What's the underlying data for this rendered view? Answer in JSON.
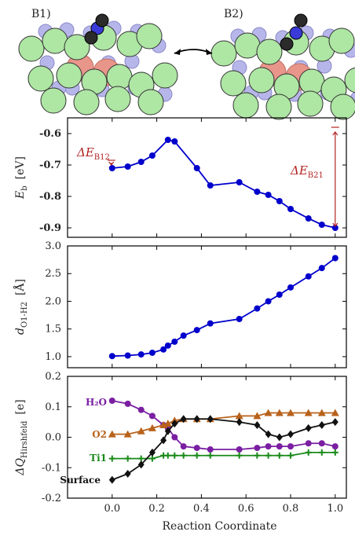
{
  "panel_labels": {
    "left": "B1)",
    "right": "B2)"
  },
  "annotations": {
    "delta_b12": "ΔE",
    "delta_b12_sub": "B12",
    "delta_b21": "ΔE",
    "delta_b21_sub": "B21",
    "color": "#b22222"
  },
  "chart_data": [
    {
      "type": "line",
      "ylabel_main": "E",
      "ylabel_sub": "b",
      "ylabel_unit": "[eV]",
      "xlim": [
        -0.2,
        1.05
      ],
      "ylim": [
        -0.93,
        -0.55
      ],
      "yticks": [
        "-0.6",
        "-0.7",
        "-0.8",
        "-0.9"
      ],
      "ytick_values": [
        -0.6,
        -0.7,
        -0.8,
        -0.9
      ],
      "series": [
        {
          "color": "#0000cc",
          "marker": "circle",
          "x": [
            0,
            0.07,
            0.13,
            0.18,
            0.25,
            0.28,
            0.38,
            0.44,
            0.57,
            0.65,
            0.7,
            0.75,
            0.8,
            0.88,
            0.94,
            1.0
          ],
          "y": [
            -0.71,
            -0.705,
            -0.69,
            -0.67,
            -0.62,
            -0.625,
            -0.71,
            -0.765,
            -0.755,
            -0.785,
            -0.795,
            -0.815,
            -0.84,
            -0.87,
            -0.89,
            -0.9
          ]
        }
      ]
    },
    {
      "type": "line",
      "ylabel_main": "d",
      "ylabel_sub": "O1-H2",
      "ylabel_unit": "[Å]",
      "xlim": [
        -0.2,
        1.05
      ],
      "ylim": [
        0.8,
        3.0
      ],
      "yticks": [
        "1.0",
        "1.5",
        "2.0",
        "2.5",
        "3.0"
      ],
      "ytick_values": [
        1.0,
        1.5,
        2.0,
        2.5,
        3.0
      ],
      "series": [
        {
          "color": "#0000cc",
          "marker": "circle",
          "x": [
            0,
            0.07,
            0.13,
            0.18,
            0.23,
            0.25,
            0.28,
            0.32,
            0.38,
            0.44,
            0.57,
            0.65,
            0.7,
            0.75,
            0.8,
            0.88,
            0.94,
            1.0
          ],
          "y": [
            1.01,
            1.02,
            1.04,
            1.07,
            1.13,
            1.2,
            1.27,
            1.38,
            1.48,
            1.6,
            1.68,
            1.87,
            2.0,
            2.12,
            2.25,
            2.45,
            2.6,
            2.78
          ]
        }
      ]
    },
    {
      "type": "line",
      "ylabel_main": "ΔQ",
      "ylabel_sub": "Hirshfeld",
      "ylabel_unit": "[e]",
      "xlabel": "Reaction Coordinate",
      "xlim": [
        -0.2,
        1.05
      ],
      "ylim": [
        -0.2,
        0.2
      ],
      "xticks": [
        "0.0",
        "0.2",
        "0.4",
        "0.6",
        "0.8",
        "1.0"
      ],
      "xtick_values": [
        0,
        0.2,
        0.4,
        0.6,
        0.8,
        1.0
      ],
      "yticks": [
        "0.2",
        "0.1",
        "0.0",
        "-0.1",
        "-0.2"
      ],
      "ytick_values": [
        0.2,
        0.1,
        0.0,
        -0.1,
        -0.2
      ],
      "series": [
        {
          "name": "H₂O",
          "color": "#7a1fa2",
          "marker": "circle",
          "x": [
            0,
            0.07,
            0.13,
            0.18,
            0.23,
            0.25,
            0.28,
            0.32,
            0.38,
            0.44,
            0.57,
            0.65,
            0.7,
            0.75,
            0.8,
            0.88,
            0.94,
            1.0
          ],
          "y": [
            0.12,
            0.11,
            0.09,
            0.07,
            0.04,
            0.03,
            0.0,
            -0.03,
            -0.035,
            -0.04,
            -0.04,
            -0.035,
            -0.03,
            -0.03,
            -0.03,
            -0.02,
            -0.02,
            -0.03
          ]
        },
        {
          "name": "O2",
          "color": "#b8621b",
          "marker": "triangle",
          "x": [
            0,
            0.07,
            0.13,
            0.18,
            0.23,
            0.25,
            0.28,
            0.32,
            0.38,
            0.44,
            0.57,
            0.65,
            0.7,
            0.75,
            0.8,
            0.88,
            0.94,
            1.0
          ],
          "y": [
            0.01,
            0.01,
            0.02,
            0.03,
            0.04,
            0.045,
            0.055,
            0.06,
            0.06,
            0.06,
            0.07,
            0.07,
            0.08,
            0.08,
            0.08,
            0.08,
            0.08,
            0.08
          ]
        },
        {
          "name": "Ti1",
          "color": "#1a8a1a",
          "marker": "plus",
          "x": [
            0,
            0.07,
            0.13,
            0.18,
            0.23,
            0.25,
            0.28,
            0.32,
            0.38,
            0.44,
            0.57,
            0.65,
            0.7,
            0.75,
            0.8,
            0.88,
            0.94,
            1.0
          ],
          "y": [
            -0.07,
            -0.07,
            -0.07,
            -0.07,
            -0.06,
            -0.06,
            -0.06,
            -0.06,
            -0.06,
            -0.06,
            -0.06,
            -0.06,
            -0.06,
            -0.06,
            -0.06,
            -0.05,
            -0.05,
            -0.05
          ]
        },
        {
          "name": "Surface",
          "color": "#111111",
          "marker": "diamond",
          "x": [
            0,
            0.07,
            0.13,
            0.18,
            0.23,
            0.25,
            0.28,
            0.32,
            0.38,
            0.44,
            0.57,
            0.65,
            0.7,
            0.75,
            0.8,
            0.88,
            0.94,
            1.0
          ],
          "y": [
            -0.14,
            -0.12,
            -0.09,
            -0.05,
            -0.01,
            0.02,
            0.045,
            0.06,
            0.06,
            0.06,
            0.05,
            0.04,
            0.01,
            0.0,
            0.01,
            0.03,
            0.04,
            0.05
          ]
        }
      ]
    }
  ]
}
